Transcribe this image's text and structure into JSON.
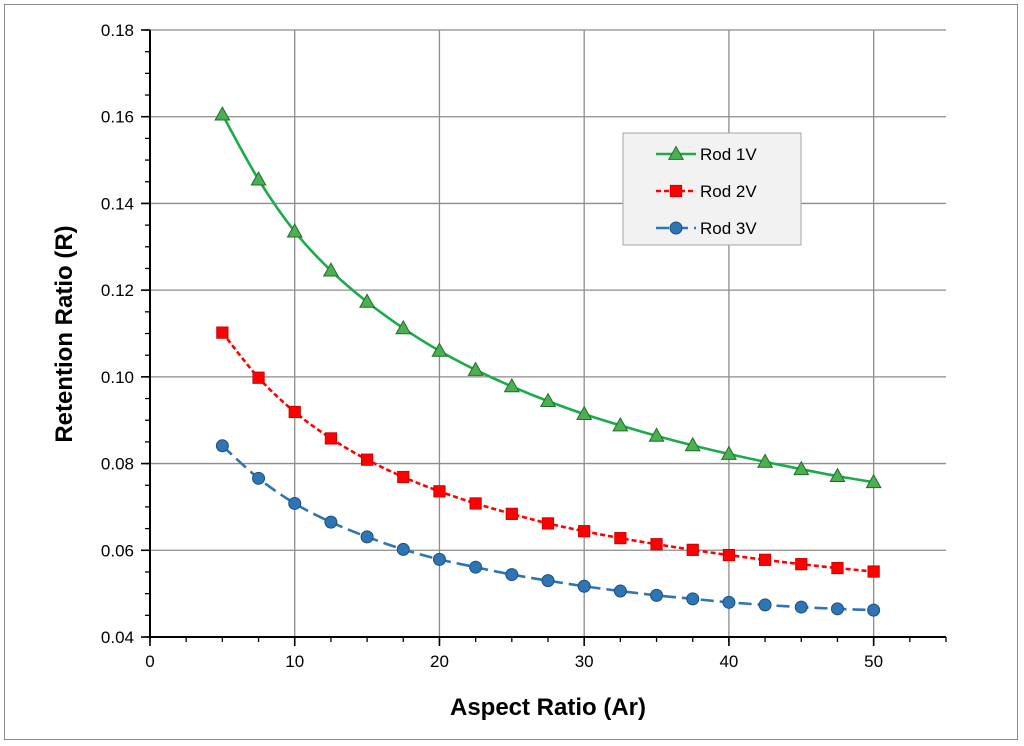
{
  "chart_data": {
    "type": "line",
    "title": "",
    "xlabel": "Aspect Ratio (Ar)",
    "ylabel": "Retention Ratio (R)",
    "xlim": [
      0,
      55
    ],
    "ylim": [
      0.04,
      0.18
    ],
    "xticks": [
      0,
      10,
      20,
      30,
      40,
      50
    ],
    "xtick_labels": [
      "0",
      "10",
      "20",
      "30",
      "40",
      "50"
    ],
    "xminor_step": 2.5,
    "yticks": [
      0.04,
      0.06,
      0.08,
      0.1,
      0.12,
      0.14,
      0.16,
      0.18
    ],
    "ytick_labels": [
      "0.04",
      "0.06",
      "0.08",
      "0.10",
      "0.12",
      "0.14",
      "0.16",
      "0.18"
    ],
    "yminor_step": 0.005,
    "grid": true,
    "legend_position": "top-right",
    "x": [
      5,
      7.5,
      10,
      12.5,
      15,
      17.5,
      20,
      22.5,
      25,
      27.5,
      30,
      32.5,
      35,
      37.5,
      40,
      42.5,
      45,
      47.5,
      50
    ],
    "series": [
      {
        "name": "Rod 1V",
        "color": "#1aac4a",
        "marker": "triangle",
        "marker_fill": "#4caf50",
        "line_style": "solid",
        "values": [
          0.1605,
          0.1455,
          0.1335,
          0.1245,
          0.1173,
          0.1112,
          0.106,
          0.1016,
          0.0978,
          0.0944,
          0.0914,
          0.0888,
          0.0864,
          0.0842,
          0.0822,
          0.0804,
          0.0787,
          0.0771,
          0.0757
        ]
      },
      {
        "name": "Rod 2V",
        "color": "#ff0000",
        "marker": "square",
        "marker_fill": "#ff0000",
        "line_style": "dotted",
        "values": [
          0.1102,
          0.0998,
          0.0919,
          0.0858,
          0.0809,
          0.0769,
          0.0736,
          0.0708,
          0.0684,
          0.0662,
          0.0644,
          0.0628,
          0.0614,
          0.0601,
          0.0589,
          0.0578,
          0.0568,
          0.0559,
          0.0551
        ]
      },
      {
        "name": "Rod 3V",
        "color": "#2e75b6",
        "marker": "circle",
        "marker_fill": "#2e75b6",
        "line_style": "dashed",
        "values": [
          0.0841,
          0.0766,
          0.0708,
          0.0665,
          0.0631,
          0.0602,
          0.0579,
          0.0561,
          0.0544,
          0.053,
          0.0517,
          0.0506,
          0.0496,
          0.0488,
          0.048,
          0.0474,
          0.0469,
          0.0465,
          0.0462
        ]
      }
    ]
  }
}
